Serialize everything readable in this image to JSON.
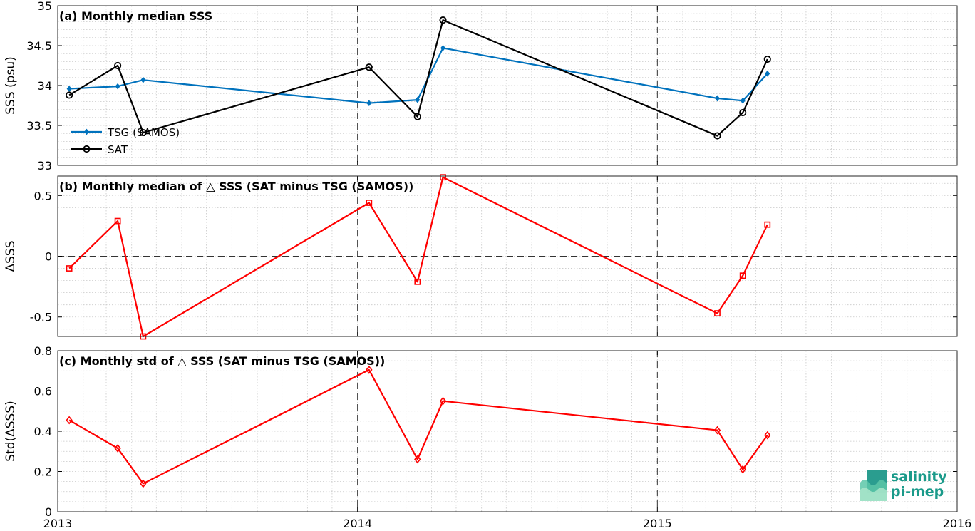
{
  "chart_data": [
    {
      "type": "line",
      "title": "(a) Monthly median SSS",
      "ylabel": "SSS (psu)",
      "ylim": [
        33,
        35
      ],
      "yticks": [
        "33",
        "33.5",
        "34",
        "34.5",
        "35"
      ],
      "legend_position": "left",
      "series": [
        {
          "name": "TSG (SAMOS)",
          "color": "#0072bd",
          "marker": "diamond",
          "x": [
            "2013-01-15",
            "2013-03-15",
            "2013-04-15",
            "2014-01-15",
            "2014-03-15",
            "2014-04-15",
            "2015-03-15",
            "2015-04-15",
            "2015-05-15"
          ],
          "values": [
            33.96,
            33.99,
            34.07,
            33.78,
            33.82,
            34.47,
            33.84,
            33.81,
            34.15
          ]
        },
        {
          "name": "SAT",
          "color": "#000000",
          "marker": "circle",
          "x": [
            "2013-01-15",
            "2013-03-15",
            "2013-04-15",
            "2014-01-15",
            "2014-03-15",
            "2014-04-15",
            "2015-03-15",
            "2015-04-15",
            "2015-05-15"
          ],
          "values": [
            33.88,
            34.25,
            33.41,
            34.23,
            33.61,
            34.82,
            33.37,
            33.66,
            34.33
          ]
        }
      ]
    },
    {
      "type": "line",
      "title": "(b) Monthly median of △ SSS (SAT minus TSG (SAMOS))",
      "ylabel": "ΔSSS",
      "ylim": [
        -0.66,
        0.66
      ],
      "yticks": [
        "-0.5",
        "0",
        "0.5"
      ],
      "zero_line": true,
      "series": [
        {
          "color": "#ff0000",
          "marker": "square",
          "x": [
            "2013-01-15",
            "2013-03-15",
            "2013-04-15",
            "2014-01-15",
            "2014-03-15",
            "2014-04-15",
            "2015-03-15",
            "2015-04-15",
            "2015-05-15"
          ],
          "values": [
            -0.1,
            0.29,
            -0.66,
            0.44,
            -0.21,
            0.65,
            -0.47,
            -0.16,
            0.26
          ]
        }
      ]
    },
    {
      "type": "line",
      "title": "(c) Monthly std of △ SSS (SAT minus TSG (SAMOS))",
      "ylabel": "Std(ΔSSS)",
      "ylim": [
        0,
        0.8
      ],
      "yticks": [
        "0",
        "0.2",
        "0.4",
        "0.6",
        "0.8"
      ],
      "series": [
        {
          "color": "#ff0000",
          "marker": "diamond",
          "x": [
            "2013-01-15",
            "2013-03-15",
            "2013-04-15",
            "2014-01-15",
            "2014-03-15",
            "2014-04-15",
            "2015-03-15",
            "2015-04-15",
            "2015-05-15"
          ],
          "values": [
            0.455,
            0.315,
            0.14,
            0.705,
            0.26,
            0.55,
            0.405,
            0.21,
            0.38
          ]
        }
      ]
    }
  ],
  "x_axis": {
    "range": [
      "2013-01-01",
      "2016-01-01"
    ],
    "tick_labels": [
      "2013",
      "2014",
      "2015",
      "2016"
    ],
    "year_markers": [
      "2014",
      "2015"
    ],
    "grid": "dotted"
  },
  "logo": {
    "line1": "salinity",
    "line2": "pi-mep"
  }
}
